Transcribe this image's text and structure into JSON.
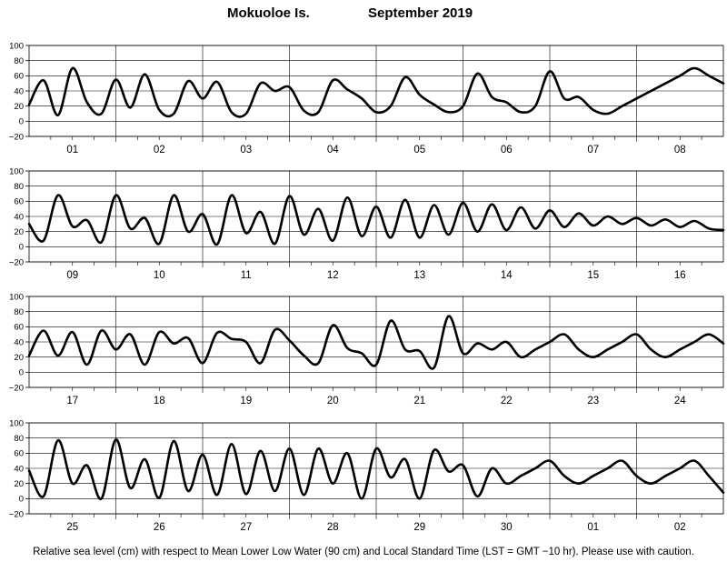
{
  "title": {
    "station": "Mokuoloe Is.",
    "period": "September 2019"
  },
  "footer_note": "Relative sea level (cm) with respect to Mean Lower Low Water (90 cm) and Local Standard Time (LST = GMT −10 hr). Please use with caution.",
  "chart_data": [
    {
      "type": "line",
      "panel": 1,
      "ylim": [
        -20,
        100
      ],
      "yticks": [
        "100",
        "80",
        "60",
        "40",
        "20",
        "0",
        "−20"
      ],
      "days": [
        "01",
        "02",
        "03",
        "04",
        "05",
        "06",
        "07",
        "08"
      ],
      "x_hours": [
        0,
        4,
        8,
        12,
        16,
        20,
        24,
        28,
        32,
        36,
        40,
        44,
        48,
        52,
        56,
        60,
        64,
        68,
        72,
        76,
        80,
        84,
        88,
        92,
        96,
        100,
        104,
        108,
        112,
        116,
        120,
        124,
        128,
        132,
        136,
        140,
        144,
        148,
        152,
        156,
        160,
        164,
        168,
        172,
        176,
        180,
        184,
        188,
        192
      ],
      "y_cm": [
        22,
        54,
        8,
        70,
        25,
        10,
        55,
        18,
        62,
        15,
        10,
        53,
        30,
        52,
        12,
        10,
        50,
        40,
        45,
        14,
        12,
        54,
        42,
        30,
        12,
        20,
        58,
        35,
        22,
        12,
        20,
        63,
        32,
        25,
        12,
        20,
        66,
        30,
        32,
        15,
        10,
        20,
        30,
        40,
        50,
        60,
        70,
        60,
        50
      ]
    },
    {
      "type": "line",
      "panel": 2,
      "ylim": [
        -20,
        100
      ],
      "yticks": [
        "100",
        "80",
        "60",
        "40",
        "20",
        "0",
        "−20"
      ],
      "days": [
        "09",
        "10",
        "11",
        "12",
        "13",
        "14",
        "15",
        "16"
      ],
      "x_hours": [
        0,
        4,
        8,
        12,
        16,
        20,
        24,
        28,
        32,
        36,
        40,
        44,
        48,
        52,
        56,
        60,
        64,
        68,
        72,
        76,
        80,
        84,
        88,
        92,
        96,
        100,
        104,
        108,
        112,
        116,
        120,
        124,
        128,
        132,
        136,
        140,
        144,
        148,
        152,
        156,
        160,
        164,
        168,
        172,
        176,
        180,
        184,
        188,
        192
      ],
      "y_cm": [
        30,
        8,
        68,
        27,
        35,
        6,
        68,
        24,
        38,
        4,
        68,
        20,
        43,
        3,
        68,
        18,
        46,
        4,
        67,
        16,
        50,
        8,
        65,
        14,
        53,
        12,
        62,
        12,
        55,
        16,
        58,
        20,
        56,
        22,
        52,
        24,
        48,
        26,
        44,
        28,
        40,
        30,
        38,
        28,
        36,
        26,
        34,
        24,
        22
      ]
    },
    {
      "type": "line",
      "panel": 3,
      "ylim": [
        -20,
        100
      ],
      "yticks": [
        "100",
        "80",
        "60",
        "40",
        "20",
        "0",
        "−20"
      ],
      "days": [
        "17",
        "18",
        "19",
        "20",
        "21",
        "22",
        "23",
        "24"
      ],
      "x_hours": [
        0,
        4,
        8,
        12,
        16,
        20,
        24,
        28,
        32,
        36,
        40,
        44,
        48,
        52,
        56,
        60,
        64,
        68,
        72,
        76,
        80,
        84,
        88,
        92,
        96,
        100,
        104,
        108,
        112,
        116,
        120,
        124,
        128,
        132,
        136,
        140,
        144,
        148,
        152,
        156,
        160,
        164,
        168,
        172,
        176,
        180,
        184,
        188,
        192
      ],
      "y_cm": [
        22,
        55,
        22,
        53,
        10,
        55,
        30,
        50,
        10,
        53,
        38,
        45,
        12,
        52,
        44,
        40,
        12,
        56,
        42,
        22,
        12,
        62,
        32,
        25,
        10,
        68,
        30,
        28,
        6,
        74,
        25,
        38,
        30,
        40,
        20,
        30,
        40,
        50,
        30,
        20,
        30,
        40,
        50,
        30,
        20,
        30,
        40,
        50,
        38
      ]
    },
    {
      "type": "line",
      "panel": 4,
      "ylim": [
        -20,
        100
      ],
      "yticks": [
        "100",
        "80",
        "60",
        "40",
        "20",
        "0",
        "−20"
      ],
      "days": [
        "25",
        "26",
        "27",
        "28",
        "29",
        "30",
        "01",
        "02"
      ],
      "x_hours": [
        0,
        4,
        8,
        12,
        16,
        20,
        24,
        28,
        32,
        36,
        40,
        44,
        48,
        52,
        56,
        60,
        64,
        68,
        72,
        76,
        80,
        84,
        88,
        92,
        96,
        100,
        104,
        108,
        112,
        116,
        120,
        124,
        128,
        132,
        136,
        140,
        144,
        148,
        152,
        156,
        160,
        164,
        168,
        172,
        176,
        180,
        184,
        188,
        192
      ],
      "y_cm": [
        37,
        3,
        77,
        20,
        44,
        0,
        78,
        14,
        52,
        1,
        76,
        10,
        58,
        5,
        72,
        6,
        63,
        10,
        66,
        5,
        66,
        20,
        60,
        0,
        66,
        28,
        52,
        0,
        64,
        36,
        44,
        3,
        40,
        20,
        30,
        40,
        50,
        30,
        20,
        30,
        40,
        50,
        30,
        20,
        30,
        40,
        50,
        30,
        8
      ]
    }
  ]
}
